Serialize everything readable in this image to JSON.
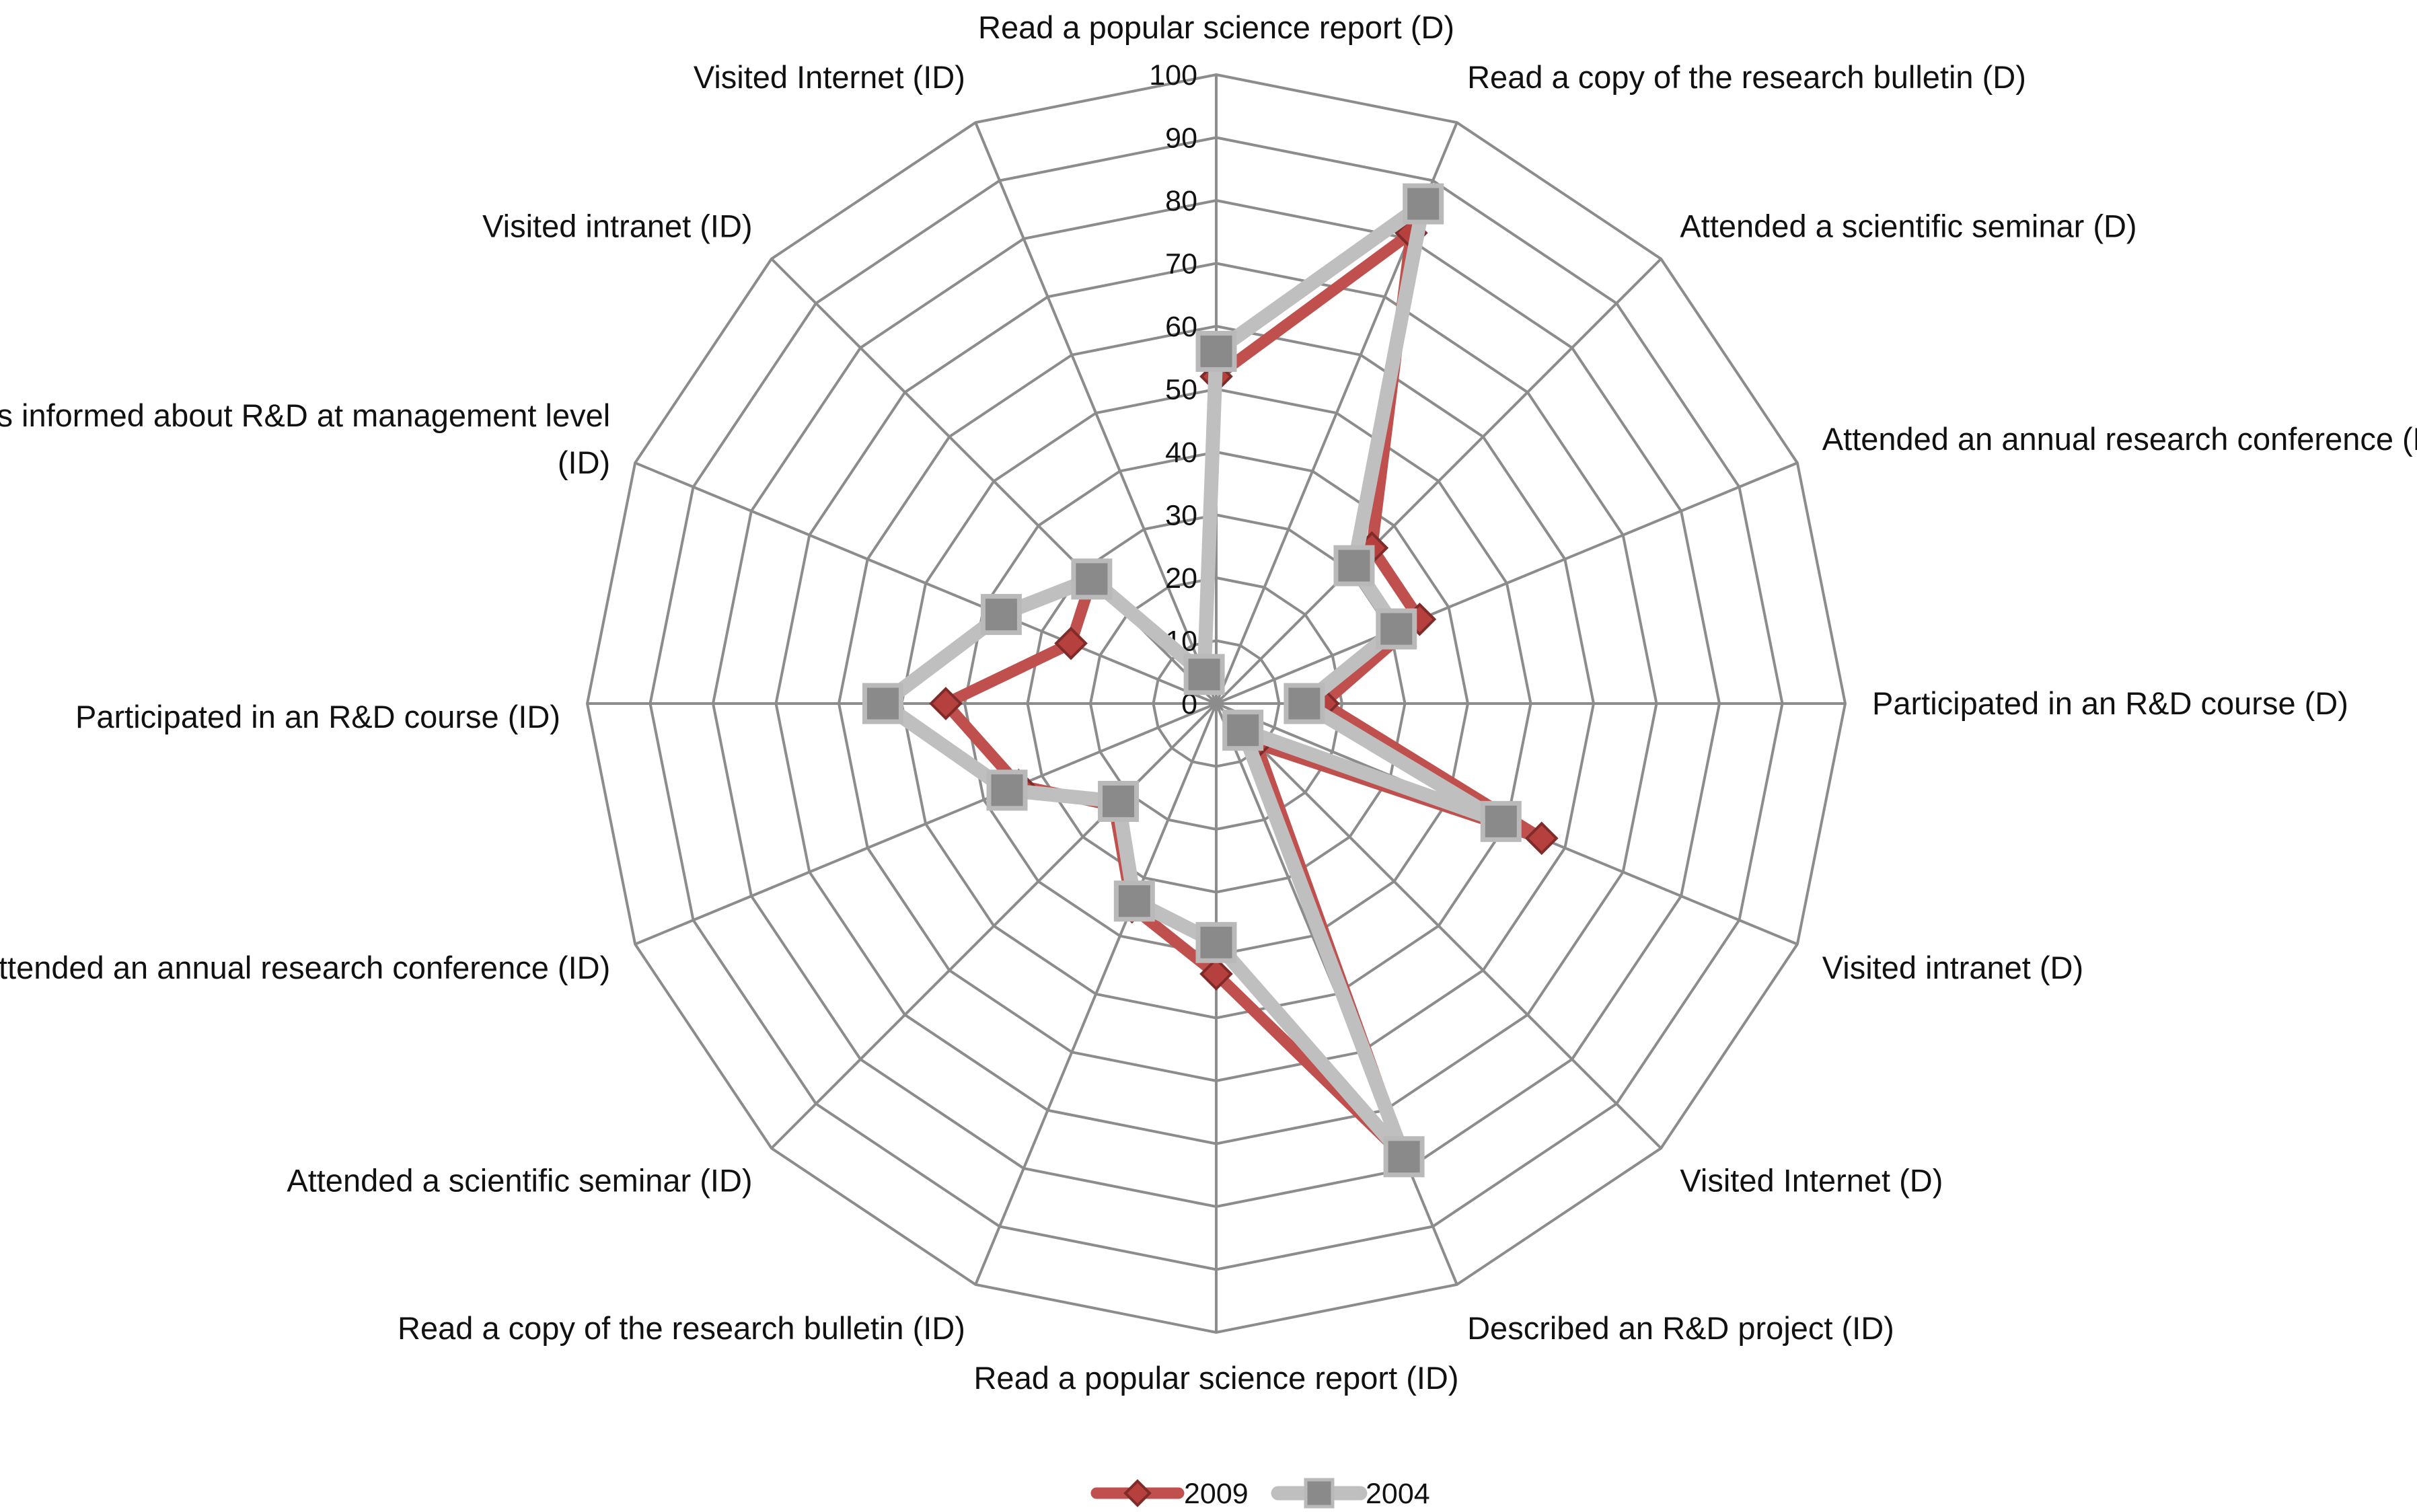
{
  "chart_data": {
    "type": "radar",
    "title": "",
    "axes": [
      {
        "label": "Read a popular science report (D)"
      },
      {
        "label": "Read a copy of the research bulletin (D)"
      },
      {
        "label": "Attended a scientific seminar  (D)"
      },
      {
        "label": "Attended an annual research conference (D)"
      },
      {
        "label": "Participated in an R&D course (D)"
      },
      {
        "label": "Visited intranet  (D)"
      },
      {
        "label": "Visited Internet (D)"
      },
      {
        "label": "Described an R&D project (ID)"
      },
      {
        "label": "Read a popular science report (ID)"
      },
      {
        "label": "Read a copy of the research bulletin (ID)"
      },
      {
        "label": "Attended a scientific seminar  (ID)"
      },
      {
        "label": "Attended an annual research conference (ID)"
      },
      {
        "label": "Participated in an R&D course (ID)"
      },
      {
        "label": "Was informed about R&D at management level (ID)"
      },
      {
        "label": "Visited intranet  (ID)"
      },
      {
        "label": "Visited Internet (ID)"
      }
    ],
    "range": [
      0,
      100
    ],
    "ticks": [
      "0",
      "10",
      "20",
      "30",
      "40",
      "50",
      "60",
      "70",
      "80",
      "90",
      "100"
    ],
    "grid": true,
    "legend_position": "bottom",
    "series": [
      {
        "name": "2009",
        "color": "#c0504d",
        "marker": "diamond",
        "values": [
          52,
          81,
          35,
          35,
          17,
          56,
          9,
          78,
          43,
          35,
          23,
          34,
          43,
          25,
          28,
          5
        ]
      },
      {
        "name": "2004",
        "color": "#bfbfbf",
        "marker": "square",
        "values": [
          56,
          86,
          31,
          31,
          14,
          49,
          6,
          78,
          38,
          34,
          22,
          36,
          53,
          37,
          28,
          5
        ]
      }
    ]
  }
}
